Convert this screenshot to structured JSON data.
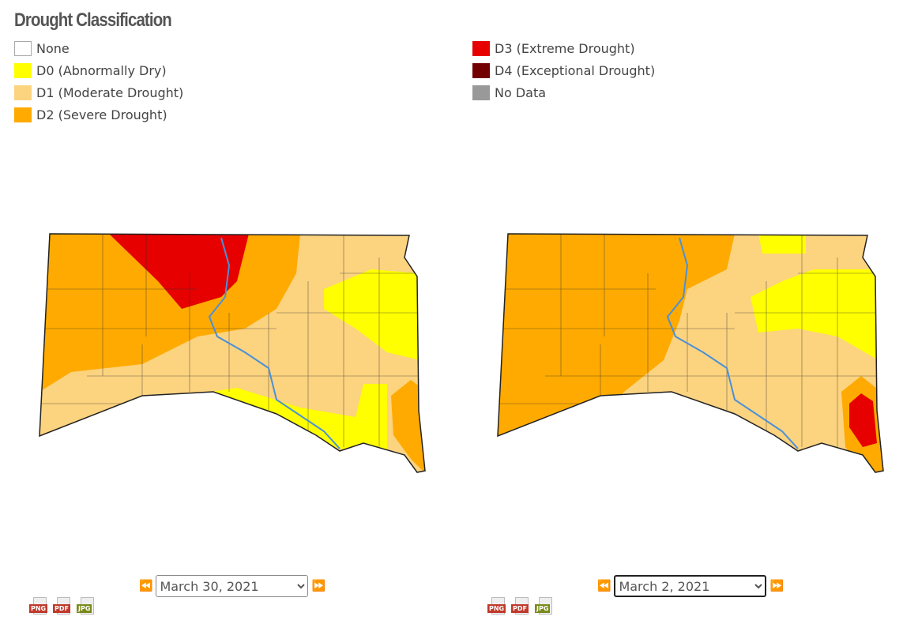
{
  "header": {
    "title": "Drought Classification"
  },
  "legend": [
    {
      "label": "None",
      "color": "#ffffff"
    },
    {
      "label": "D0 (Abnormally Dry)",
      "color": "#ffff00"
    },
    {
      "label": "D1 (Moderate Drought)",
      "color": "#fcd37f"
    },
    {
      "label": "D2 (Severe Drought)",
      "color": "#ffaa00"
    },
    {
      "label": "D3 (Extreme Drought)",
      "color": "#e60000"
    },
    {
      "label": "D4 (Exceptional Drought)",
      "color": "#730000"
    },
    {
      "label": "No Data",
      "color": "#999999"
    }
  ],
  "maps": [
    {
      "date": "March 30, 2021",
      "downloads": [
        "PNG",
        "PDF",
        "JPG"
      ]
    },
    {
      "date": "March 2, 2021",
      "downloads": [
        "PNG",
        "PDF",
        "JPG"
      ]
    }
  ]
}
